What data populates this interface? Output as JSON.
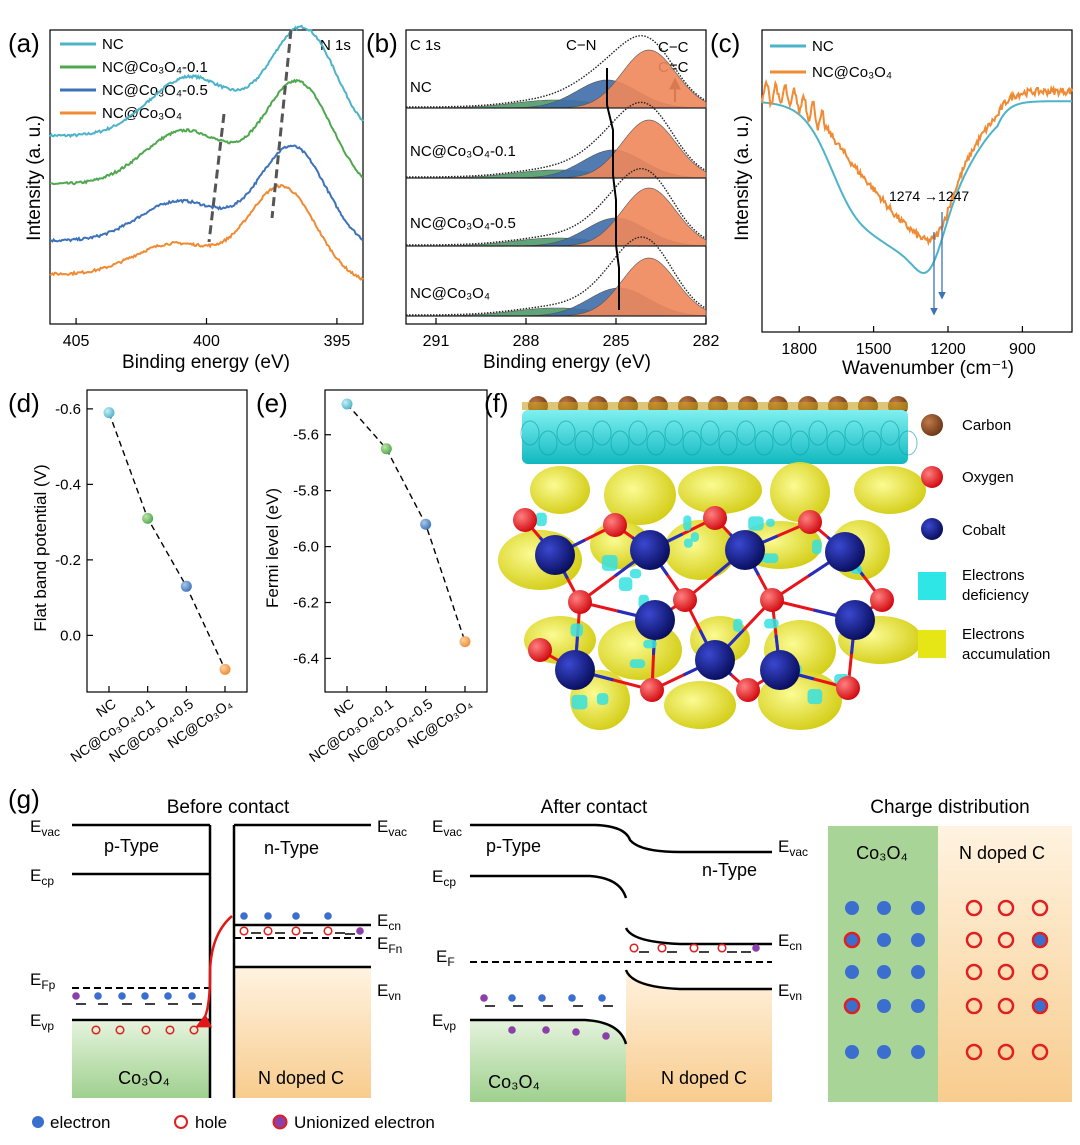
{
  "colors": {
    "nc": "#4db3c9",
    "nc01": "#4fa84f",
    "nc05": "#3e72b8",
    "nc_co3o4": "#f08a33",
    "cn_fill": "#3f6ea8",
    "cc_fill": "#f0875a",
    "fit": "#9aa8bb",
    "carbon": "#8b4a23",
    "oxygen": "#e8141a",
    "cobalt": "#0b1580",
    "cyan": "#34e0e0",
    "yellow": "#ebe80a",
    "ptype_fill": "#a8d59a",
    "ntype_fill": "#fbd9a8",
    "electron": "#3a6fd0",
    "hole": "#e02020"
  },
  "panel_a": {
    "label": "(a)",
    "tag": "N 1s",
    "xlabel": "Binding energy (eV)",
    "ylabel": "Intensity (a. u.)",
    "legend": [
      {
        "label": "NC",
        "color_key": "nc"
      },
      {
        "label": "NC@Co₃O₄-0.1",
        "color_key": "nc01"
      },
      {
        "label": "NC@Co₃O₄-0.5",
        "color_key": "nc05"
      },
      {
        "label": "NC@Co₃O₄",
        "color_key": "nc_co3o4"
      }
    ]
  },
  "panel_b": {
    "label": "(b)",
    "tag": "C 1s",
    "peak_cn": "C−N",
    "peak_cc1": "C−C",
    "peak_cc2": "C=C",
    "xlabel": "Binding energy (eV)",
    "samples": [
      "NC",
      "NC@Co₃O₄-0.1",
      "NC@Co₃O₄-0.5",
      "NC@Co₃O₄"
    ]
  },
  "panel_c": {
    "label": "(c)",
    "xlabel": "Wavenumber (cm⁻¹)",
    "ylabel": "Intensity (a. u.)",
    "annotation": "1274 →1247",
    "legend": [
      {
        "label": "NC",
        "color_key": "nc"
      },
      {
        "label": "NC@Co₃O₄",
        "color_key": "nc_co3o4"
      }
    ]
  },
  "panel_f": {
    "label": "(f)",
    "legend": [
      "Carbon",
      "Oxygen",
      "Cobalt",
      "Electrons deficiency",
      "Electrons accumulation"
    ],
    "legend_lines": [
      [
        "Carbon"
      ],
      [
        "Oxygen"
      ],
      [
        "Cobalt"
      ],
      [
        "Electrons",
        "deficiency"
      ],
      [
        "Electrons",
        "accumulation"
      ]
    ]
  },
  "panel_g": {
    "label": "(g)",
    "before_title": "Before contact",
    "after_title": "After contact",
    "charge_title": "Charge distribution",
    "p_type": "p-Type",
    "n_type": "n-Type",
    "co3o4": "Co₃O₄",
    "n_doped_c": "N doped C",
    "levels": {
      "evac": "Evac",
      "ecp": "Ecp",
      "efp": "EFp",
      "evp": "Evp",
      "ecn": "Ecn",
      "efn": "EFn",
      "evn": "Evn",
      "ef": "EF"
    },
    "legend": {
      "electron": "electron",
      "hole": "hole",
      "unionized": "Unionized electron"
    }
  },
  "chart_data": [
    {
      "id": "a",
      "type": "line",
      "title": "N 1s",
      "xlabel": "Binding energy (eV)",
      "ylabel": "Intensity (a. u.)",
      "xlim": [
        406,
        394
      ],
      "xdir": "reversed",
      "xticks": [
        405,
        400,
        395
      ],
      "series": [
        {
          "name": "NC",
          "offset": 0.78,
          "peaks": [
            [
              400.6,
              0.55,
              1.6
            ],
            [
              396.3,
              1.0,
              1.3
            ]
          ]
        },
        {
          "name": "NC@Co₃O₄-0.1",
          "offset": 0.55,
          "peaks": [
            [
              400.8,
              0.5,
              1.6
            ],
            [
              396.5,
              0.95,
              1.3
            ]
          ]
        },
        {
          "name": "NC@Co₃O₄-0.5",
          "offset": 0.28,
          "peaks": [
            [
              401.0,
              0.38,
              1.6
            ],
            [
              396.7,
              0.88,
              1.3
            ]
          ]
        },
        {
          "name": "NC@Co₃O₄",
          "offset": 0.12,
          "peaks": [
            [
              401.2,
              0.3,
              1.6
            ],
            [
              397.1,
              0.82,
              1.3
            ]
          ]
        }
      ]
    },
    {
      "id": "b",
      "type": "line",
      "title": "C 1s",
      "xlabel": "Binding energy (eV)",
      "xlim": [
        292,
        282
      ],
      "xdir": "reversed",
      "xticks": [
        291,
        288,
        285,
        282
      ],
      "series": [
        {
          "name": "NC",
          "cn_peak": 285.3,
          "cc_peak": 283.9
        },
        {
          "name": "NC@Co₃O₄-0.1",
          "cn_peak": 285.1,
          "cc_peak": 283.9
        },
        {
          "name": "NC@Co₃O₄-0.5",
          "cn_peak": 285.0,
          "cc_peak": 283.9
        },
        {
          "name": "NC@Co₃O₄",
          "cn_peak": 284.9,
          "cc_peak": 283.9
        }
      ]
    },
    {
      "id": "c",
      "type": "line",
      "xlabel": "Wavenumber (cm⁻¹)",
      "ylabel": "Intensity (a. u.)",
      "xlim": [
        1950,
        700
      ],
      "xdir": "reversed",
      "xticks": [
        1800,
        1500,
        1200,
        900
      ],
      "series": [
        {
          "name": "NC",
          "minimum": 1274
        },
        {
          "name": "NC@Co₃O₄",
          "minimum": 1247
        }
      ]
    },
    {
      "id": "d",
      "type": "scatter",
      "ylabel": "Flat band potential (V)",
      "categories": [
        "NC",
        "NC@Co₃O₄-0.1",
        "NC@Co₃O₄-0.5",
        "NC@Co₃O₄"
      ],
      "values": [
        -0.59,
        -0.31,
        -0.13,
        0.09
      ],
      "ylim": [
        0.15,
        -0.65
      ],
      "ydir": "reversed",
      "yticks": [
        -0.6,
        -0.4,
        -0.2,
        0.0
      ],
      "ytick_labels": [
        "-0.6",
        "-0.4",
        "-0.2",
        "0.0"
      ]
    },
    {
      "id": "e",
      "type": "scatter",
      "ylabel": "Fermi level (eV)",
      "categories": [
        "NC",
        "NC@Co₃O₄-0.1",
        "NC@Co₃O₄-0.5",
        "NC@Co₃O₄"
      ],
      "values": [
        -5.49,
        -5.65,
        -5.92,
        -6.34
      ],
      "ylim": [
        -6.52,
        -5.44
      ],
      "yticks": [
        -5.6,
        -5.8,
        -6.0,
        -6.2,
        -6.4
      ],
      "ytick_labels": [
        "-5.6",
        "-5.8",
        "-6.0",
        "-6.2",
        "-6.4"
      ]
    }
  ]
}
